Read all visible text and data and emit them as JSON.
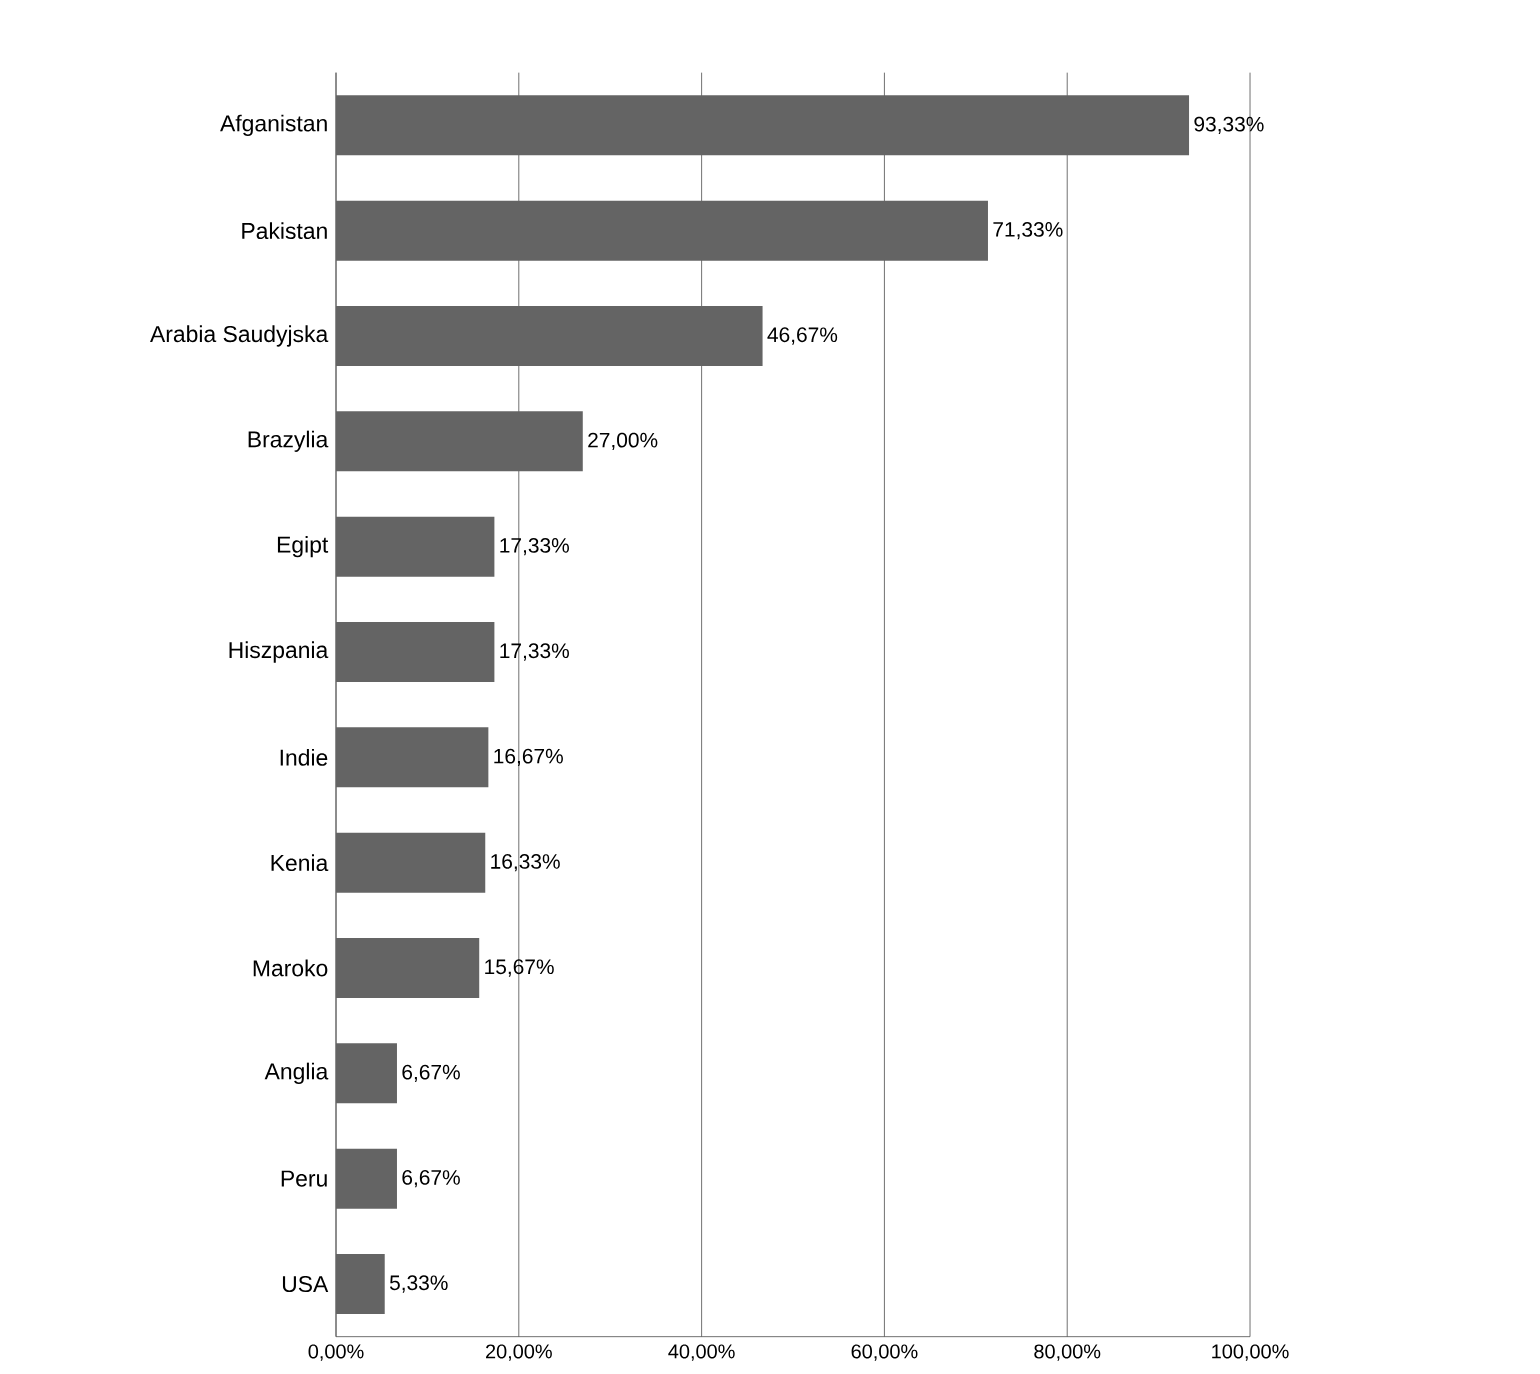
{
  "chart_data": {
    "type": "bar",
    "orientation": "horizontal",
    "categories": [
      "Afganistan",
      "Pakistan",
      "Arabia Saudyjska",
      "Brazylia",
      "Egipt",
      "Hiszpania",
      "Indie",
      "Kenia",
      "Maroko",
      "Anglia",
      "Peru",
      "USA"
    ],
    "values": [
      93.33,
      71.33,
      46.67,
      27.0,
      17.33,
      17.33,
      16.67,
      16.33,
      15.67,
      6.67,
      6.67,
      5.33
    ],
    "value_labels": [
      "93,33%",
      "71,33%",
      "46,67%",
      "27,00%",
      "17,33%",
      "17,33%",
      "16,67%",
      "16,33%",
      "15,67%",
      "6,67%",
      "6,67%",
      "5,33%"
    ],
    "color": "#646464",
    "xlim": [
      0,
      100
    ],
    "xticks": [
      {
        "value": 0,
        "label": "0,00%"
      },
      {
        "value": 20,
        "label": "20,00%"
      },
      {
        "value": 40,
        "label": "40,00%"
      },
      {
        "value": 60,
        "label": "60,00%"
      },
      {
        "value": 80,
        "label": "80,00%"
      },
      {
        "value": 100,
        "label": "100,00%"
      }
    ],
    "grid": "x"
  }
}
